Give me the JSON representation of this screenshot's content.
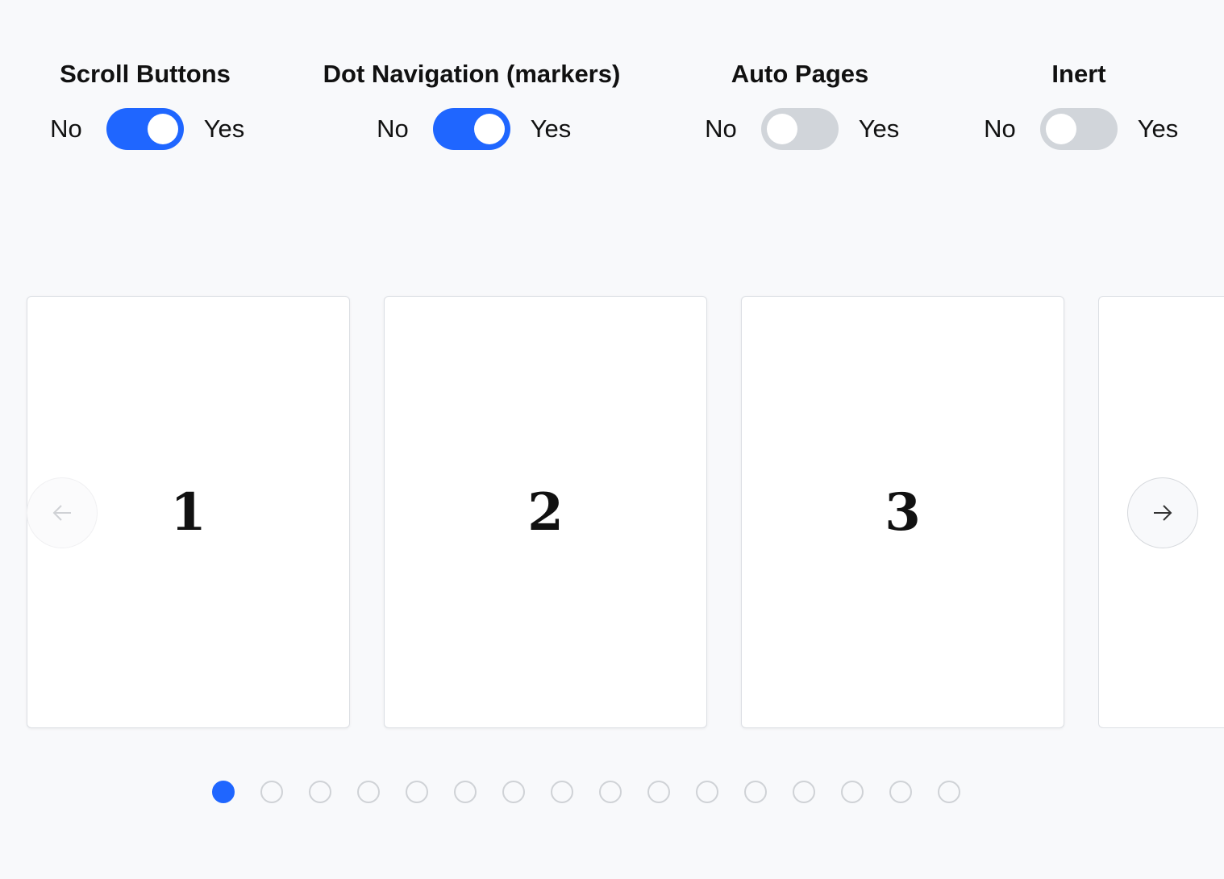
{
  "controls": [
    {
      "title": "Scroll Buttons",
      "no": "No",
      "yes": "Yes",
      "value": true
    },
    {
      "title": "Dot Navigation (markers)",
      "no": "No",
      "yes": "Yes",
      "value": true
    },
    {
      "title": "Auto Pages",
      "no": "No",
      "yes": "Yes",
      "value": false
    },
    {
      "title": "Inert",
      "no": "No",
      "yes": "Yes",
      "value": false
    }
  ],
  "carousel": {
    "slides": [
      "1",
      "2",
      "3",
      ""
    ],
    "prev_icon": "arrow-left-icon",
    "next_icon": "arrow-right-icon",
    "prev_disabled": true,
    "dot_count": 16,
    "active_dot": 0
  },
  "colors": {
    "accent": "#1f66ff",
    "toggle_off": "#d1d5da"
  }
}
